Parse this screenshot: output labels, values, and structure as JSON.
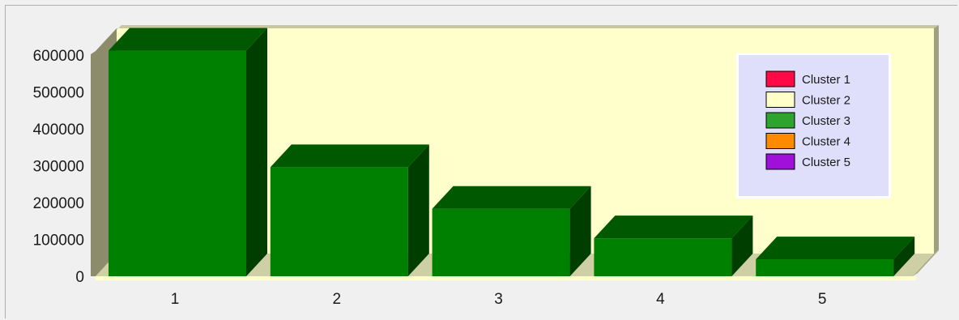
{
  "chart_data": {
    "type": "bar",
    "categories": [
      "1",
      "2",
      "3",
      "4",
      "5"
    ],
    "values": [
      612000,
      296000,
      183000,
      103000,
      46000
    ],
    "ylim": [
      0,
      600000
    ],
    "y_ticks": [
      "0",
      "100000",
      "200000",
      "300000",
      "400000",
      "500000",
      "600000"
    ],
    "legend": {
      "placement": "top-right",
      "entries": [
        {
          "name": "Cluster 1",
          "color": "#ff0a46"
        },
        {
          "name": "Cluster 2",
          "color": "#ffffc8"
        },
        {
          "name": "Cluster 3",
          "color": "#2ea32e"
        },
        {
          "name": "Cluster 4",
          "color": "#ff8a00"
        },
        {
          "name": "Cluster 5",
          "color": "#a010d8"
        }
      ]
    },
    "bar_color": "#008000",
    "plot_background": "#ffffcc",
    "legend_background": "#dfdffc"
  }
}
